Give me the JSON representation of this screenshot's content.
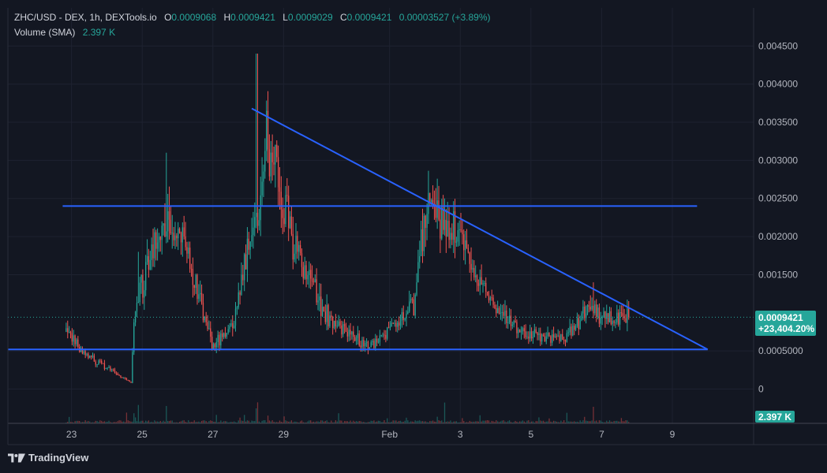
{
  "legend": {
    "symbol": "ZHC/USD - DEX, 1h, DEXTools.io",
    "o_label": "O",
    "o_value": "0.0009068",
    "h_label": "H",
    "h_value": "0.0009421",
    "l_label": "L",
    "l_value": "0.0009029",
    "c_label": "C",
    "c_value": "0.0009421",
    "change": "0.00003527 (+3.89%)",
    "volume_label": "Volume (SMA)",
    "volume_value": "2.397 K"
  },
  "price_badge": {
    "price": "0.0009421",
    "change_pct": "+23,404.20%",
    "color": "#26a69a"
  },
  "volume_badge": {
    "text": "2.397 K",
    "color": "#26a69a"
  },
  "brand": {
    "name": "TradingView",
    "logo_icon": "tradingview-logo-icon"
  },
  "colors": {
    "up": "#26a69a",
    "down": "#ef5350",
    "trendline": "#2962ff",
    "background": "#131722",
    "grid": "#1e2230"
  },
  "chart_data": {
    "type": "candlestick",
    "timeframe": "1h",
    "y_tick_labels": [
      "0",
      "0.0005000",
      "0.001500",
      "0.002000",
      "0.002500",
      "0.003000",
      "0.003500",
      "0.004000",
      "0.004500"
    ],
    "y_ticks": [
      0,
      0.0005,
      0.0015,
      0.002,
      0.0025,
      0.003,
      0.0035,
      0.004,
      0.0045
    ],
    "ylim": [
      -0.00045,
      0.005
    ],
    "x_ticks": [
      {
        "label": "23",
        "day": 23
      },
      {
        "label": "25",
        "day": 25
      },
      {
        "label": "27",
        "day": 27
      },
      {
        "label": "29",
        "day": 29
      },
      {
        "label": "Feb",
        "day": 32
      },
      {
        "label": "3",
        "day": 34
      },
      {
        "label": "5",
        "day": 36
      },
      {
        "label": "7",
        "day": 38
      },
      {
        "label": "9",
        "day": 40
      }
    ],
    "xlim": [
      21.2,
      42.3
    ],
    "price_path": [
      [
        22.85,
        0.00075
      ],
      [
        23.4,
        0.00045
      ],
      [
        24.7,
        8e-05
      ],
      [
        24.75,
        0.0009
      ],
      [
        25.3,
        0.0019
      ],
      [
        25.7,
        0.0022
      ],
      [
        26.2,
        0.0019
      ],
      [
        26.8,
        0.00085
      ],
      [
        27.0,
        0.00055
      ],
      [
        27.6,
        0.0009
      ],
      [
        28.0,
        0.0019
      ],
      [
        28.3,
        0.0024
      ],
      [
        28.5,
        0.0034
      ],
      [
        29.0,
        0.0024
      ],
      [
        29.5,
        0.0016
      ],
      [
        30.3,
        0.0009
      ],
      [
        31.4,
        0.00055
      ],
      [
        32.1,
        0.0008
      ],
      [
        32.7,
        0.0011
      ],
      [
        33.0,
        0.0023
      ],
      [
        33.4,
        0.0022
      ],
      [
        33.8,
        0.0021
      ],
      [
        34.4,
        0.0015
      ],
      [
        35.0,
        0.001
      ],
      [
        35.6,
        0.0008
      ],
      [
        36.4,
        0.00065
      ],
      [
        37.0,
        0.00068
      ],
      [
        37.6,
        0.00105
      ],
      [
        38.0,
        0.00095
      ],
      [
        38.8,
        0.0009421
      ]
    ],
    "spikes": [
      [
        24.9,
        0.0018
      ],
      [
        25.7,
        0.0031
      ],
      [
        28.25,
        0.0044
      ],
      [
        33.55,
        0.0025
      ],
      [
        37.75,
        0.0014
      ]
    ],
    "volume_max_units": 1,
    "trendlines": [
      {
        "name": "resistance",
        "points": [
          [
            22.75,
            0.0024
          ],
          [
            40.7,
            0.0024
          ]
        ]
      },
      {
        "name": "descending",
        "points": [
          [
            28.1,
            0.00368
          ],
          [
            41.0,
            0.00052
          ]
        ]
      },
      {
        "name": "support",
        "points": [
          [
            21.2,
            0.00052
          ],
          [
            41.0,
            0.00052
          ]
        ]
      }
    ],
    "last_price": 0.0009421,
    "last_price_label": "0.0009421"
  }
}
